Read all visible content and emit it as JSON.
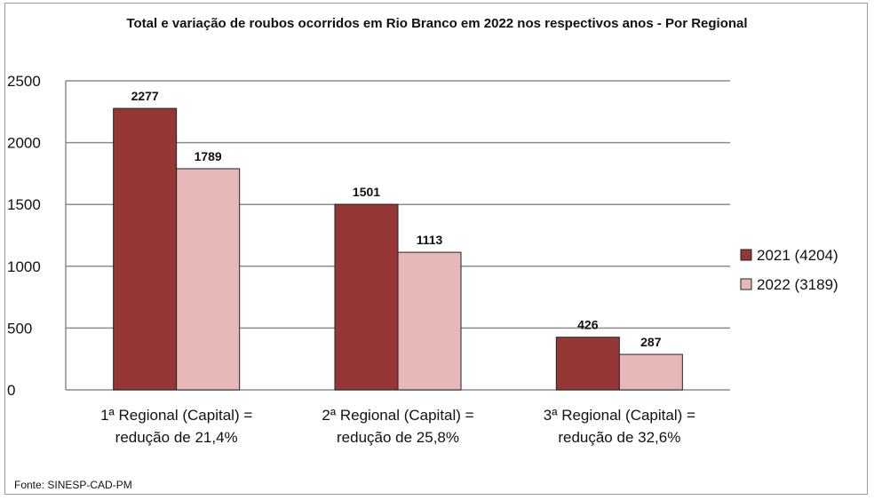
{
  "chart_data": {
    "type": "bar",
    "title": "Total e variação de roubos ocorridos em Rio Branco em 2022 nos respectivos anos - Por Regional",
    "categories": [
      [
        "1ª Regional (Capital) =",
        "redução de 21,4%"
      ],
      [
        "2ª Regional (Capital) =",
        "redução de 25,8%"
      ],
      [
        "3ª Regional (Capital) =",
        "redução de 32,6%"
      ]
    ],
    "series": [
      {
        "name": "2021 (4204)",
        "values": [
          2277,
          1501,
          426
        ],
        "color": "#953735"
      },
      {
        "name": "2022 (3189)",
        "values": [
          1789,
          1113,
          287
        ],
        "color": "#e6b9b8"
      }
    ],
    "ylim": [
      0,
      2500
    ],
    "yticks": [
      0,
      500,
      1000,
      1500,
      2000,
      2500
    ],
    "grid": true,
    "legend": "right",
    "xlabel": "",
    "ylabel": ""
  },
  "source": "Fonte: SINESP-CAD-PM"
}
